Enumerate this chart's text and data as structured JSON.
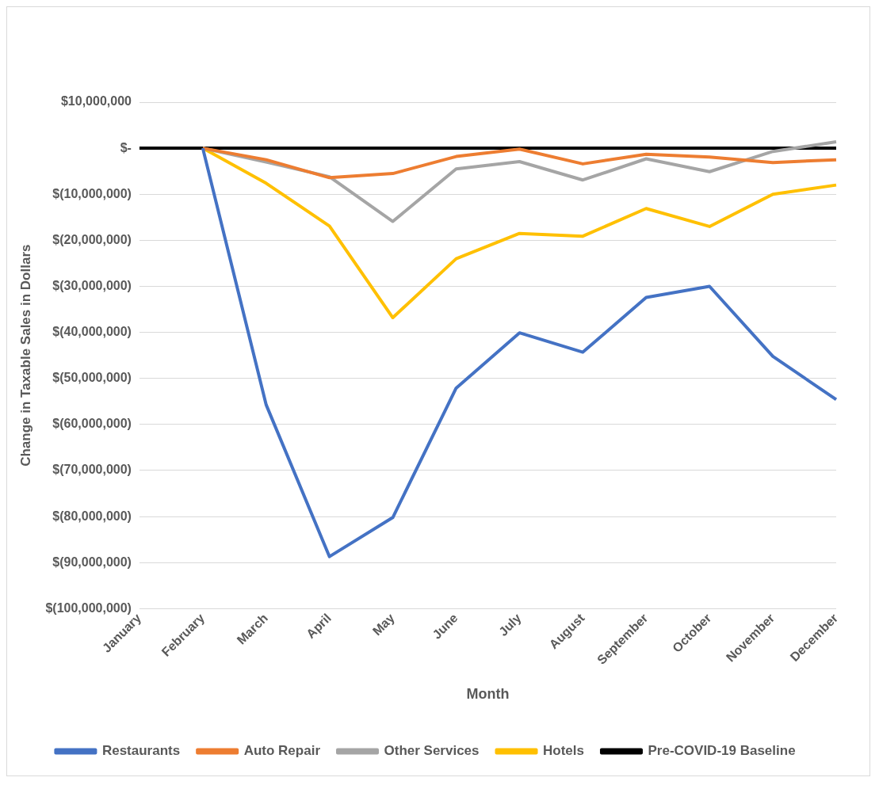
{
  "chart_data": {
    "type": "line",
    "xlabel": "Month",
    "ylabel": "Change in Taxable Sales in Dollars",
    "categories": [
      "January",
      "February",
      "March",
      "April",
      "May",
      "June",
      "July",
      "August",
      "September",
      "October",
      "November",
      "December"
    ],
    "series": [
      {
        "name": "Restaurants",
        "color": "#4472c4",
        "values": [
          null,
          0,
          -55700000,
          -88700000,
          -80200000,
          -52100000,
          -40100000,
          -44300000,
          -32400000,
          -30000000,
          -45200000,
          -54600000
        ]
      },
      {
        "name": "Auto Repair",
        "color": "#ed7d31",
        "values": [
          null,
          0,
          -2500000,
          -6400000,
          -5500000,
          -1800000,
          -200000,
          -3400000,
          -1300000,
          -1900000,
          -3100000,
          -2500000
        ]
      },
      {
        "name": "Other Services",
        "color": "#a5a5a5",
        "values": [
          null,
          0,
          -3000000,
          -6200000,
          -15900000,
          -4500000,
          -2900000,
          -6900000,
          -2300000,
          -5100000,
          -700000,
          1400000
        ]
      },
      {
        "name": "Hotels",
        "color": "#ffc000",
        "values": [
          null,
          0,
          -7600000,
          -16900000,
          -36800000,
          -24000000,
          -18500000,
          -19100000,
          -13100000,
          -17000000,
          -10000000,
          -8000000
        ]
      },
      {
        "name": "Pre-COVID-19 Baseline",
        "color": "#000000",
        "values": [
          0,
          0,
          0,
          0,
          0,
          0,
          0,
          0,
          0,
          0,
          0,
          0
        ]
      }
    ],
    "ylim": [
      -100000000,
      10000000
    ],
    "yticks": [
      {
        "value": -100000000,
        "label": "$(100,000,000)"
      },
      {
        "value": -90000000,
        "label": "$(90,000,000)"
      },
      {
        "value": -80000000,
        "label": "$(80,000,000)"
      },
      {
        "value": -70000000,
        "label": "$(70,000,000)"
      },
      {
        "value": -60000000,
        "label": "$(60,000,000)"
      },
      {
        "value": -50000000,
        "label": "$(50,000,000)"
      },
      {
        "value": -40000000,
        "label": "$(40,000,000)"
      },
      {
        "value": -30000000,
        "label": "$(30,000,000)"
      },
      {
        "value": -20000000,
        "label": "$(20,000,000)"
      },
      {
        "value": -10000000,
        "label": "$(10,000,000)"
      },
      {
        "value": 0,
        "label": "$-"
      },
      {
        "value": 10000000,
        "label": "$10,000,000"
      }
    ],
    "grid": "y",
    "legend": "bottom",
    "marker": "none",
    "line_style": "solid"
  }
}
